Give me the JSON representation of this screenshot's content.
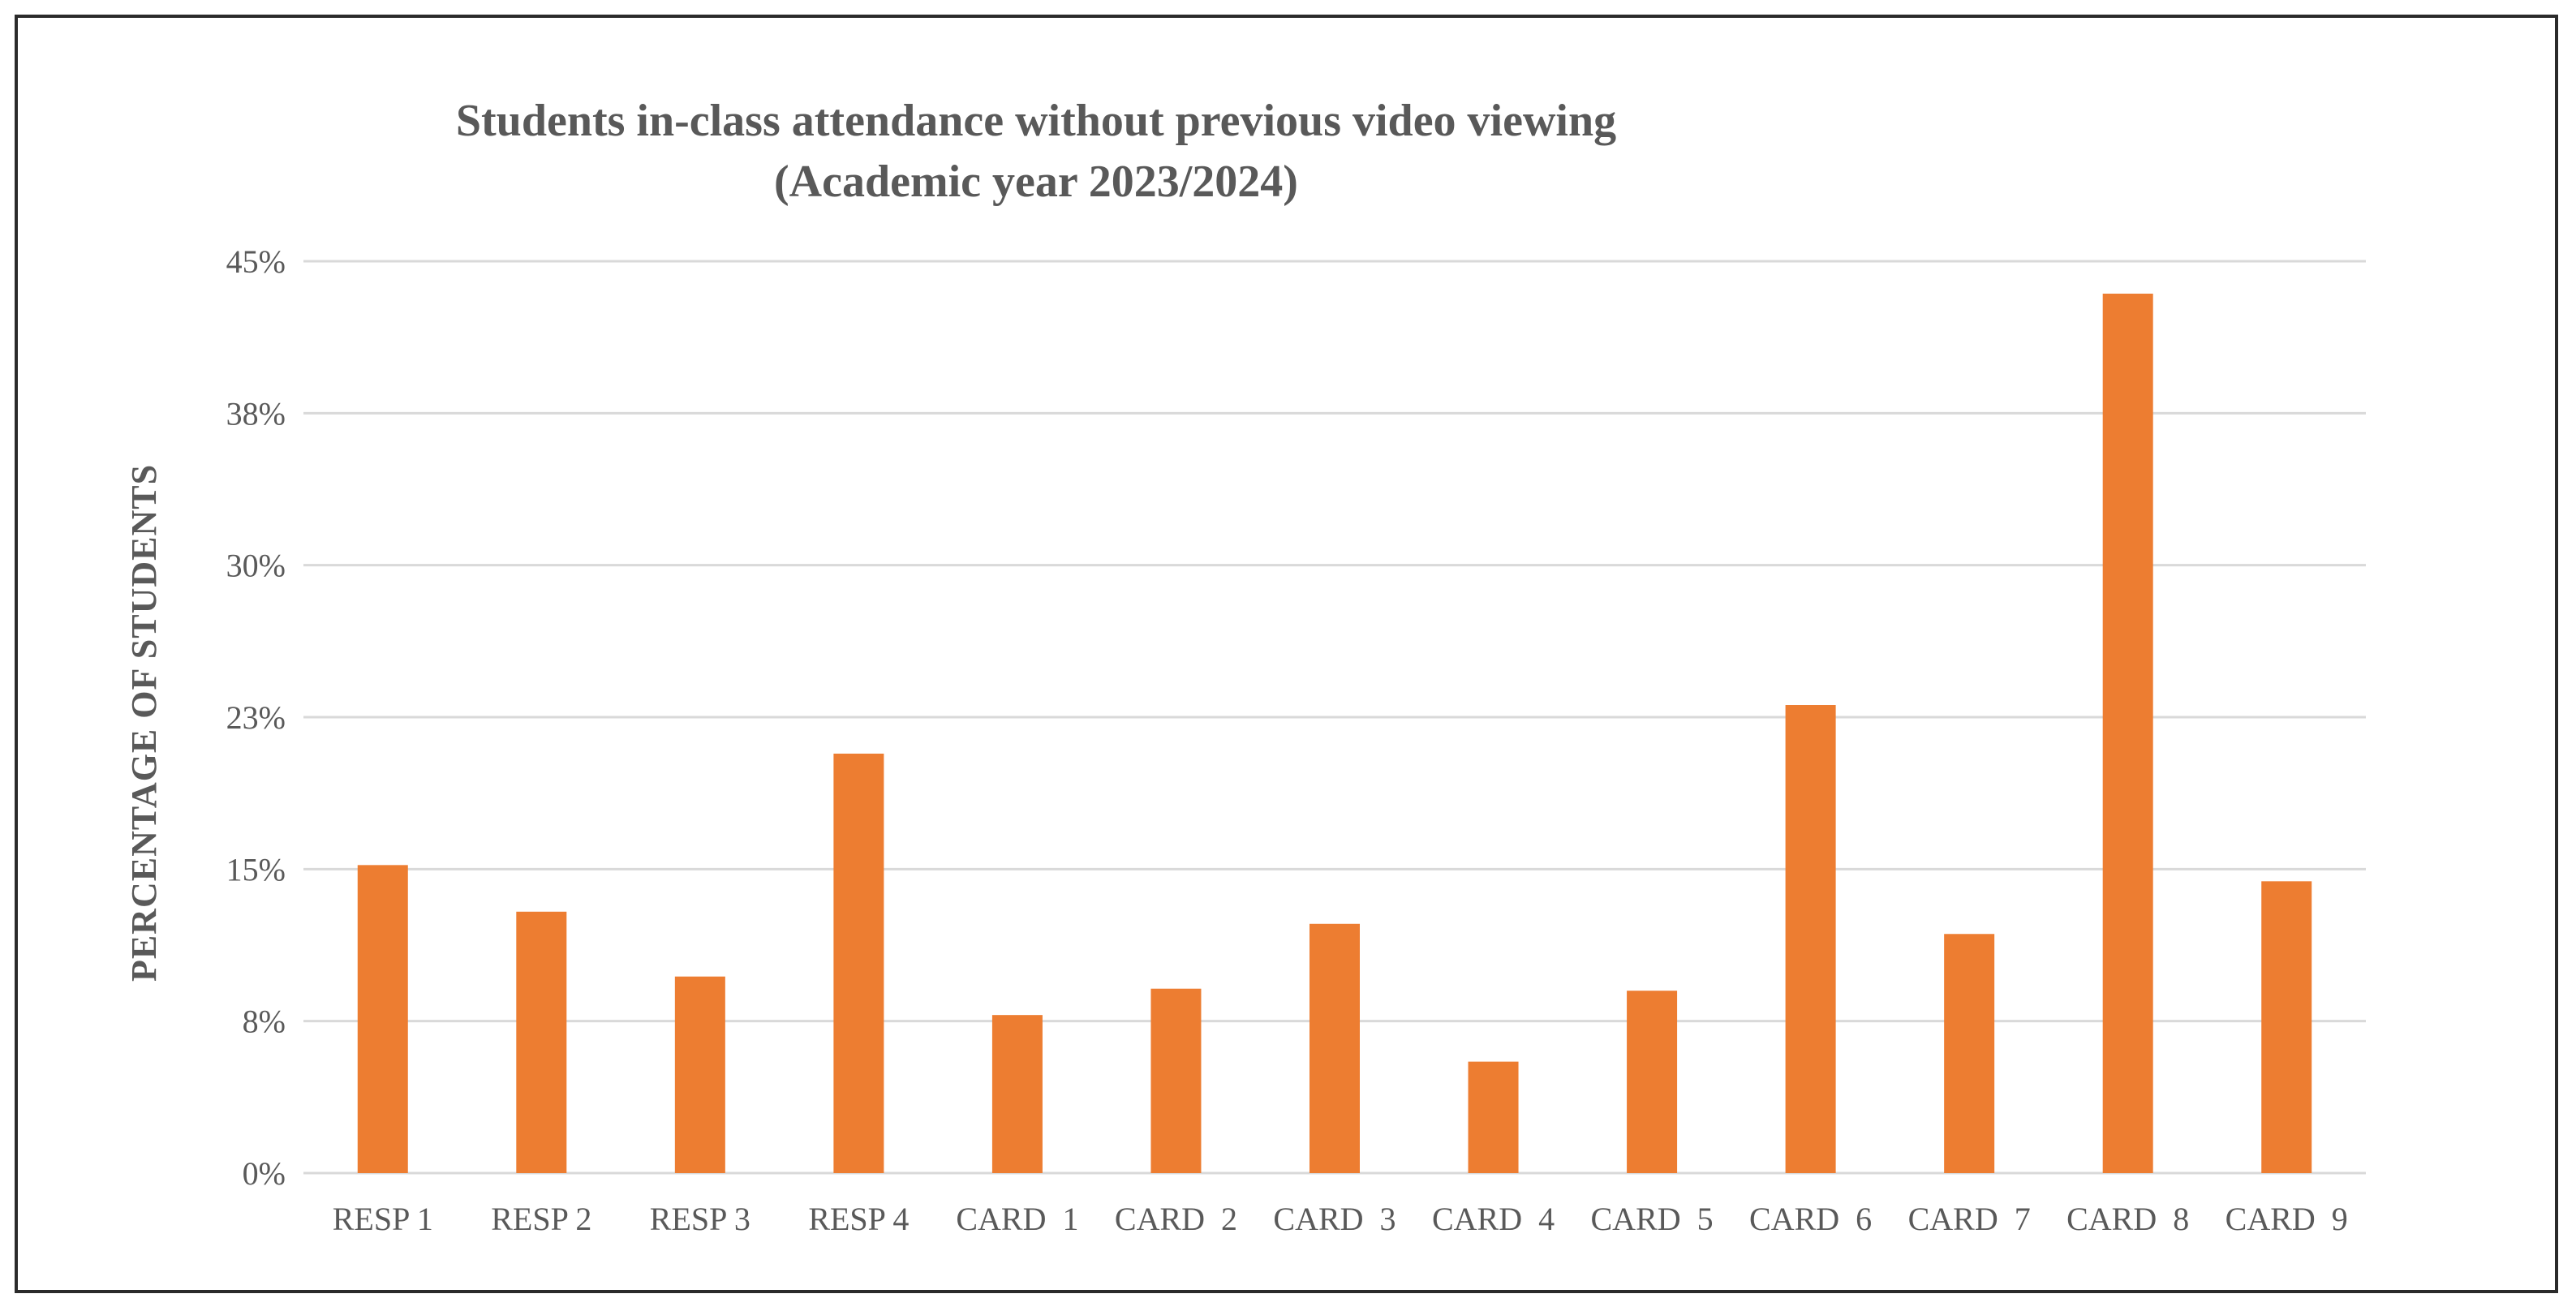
{
  "chart_data": {
    "type": "bar",
    "title": "Students in-class attendance without previous video viewing",
    "subtitle": "(Academic year 2023/2024)",
    "xlabel": "",
    "ylabel": "PERCENTAGE OF STUDENTS",
    "ylim": [
      0,
      45
    ],
    "y_ticks": [
      0,
      7.5,
      15,
      22.5,
      30,
      37.5,
      45
    ],
    "y_tick_labels": [
      "0%",
      "8%",
      "15%",
      "23%",
      "30%",
      "38%",
      "45%"
    ],
    "grid": true,
    "legend": "none",
    "bar_color": "#ed7d31",
    "categories": [
      "RESP 1",
      "RESP 2",
      "RESP 3",
      "RESP 4",
      "CARD  1",
      "CARD  2",
      "CARD  3",
      "CARD  4",
      "CARD  5",
      "CARD  6",
      "CARD  7",
      "CARD  8",
      "CARD  9"
    ],
    "values": [
      15.2,
      12.9,
      9.7,
      20.7,
      7.8,
      9.1,
      12.3,
      5.5,
      9.0,
      23.1,
      11.8,
      43.4,
      14.4
    ]
  }
}
